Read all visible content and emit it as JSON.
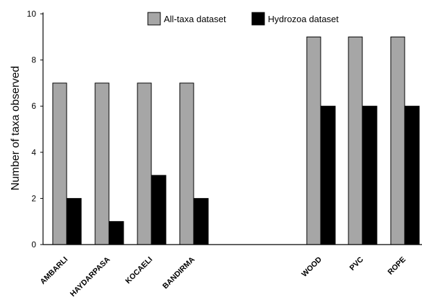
{
  "chart_data": {
    "type": "bar",
    "title": "",
    "xlabel": "",
    "ylabel": "Number of taxa observed",
    "ylim": [
      0,
      10
    ],
    "yticks": [
      0,
      2,
      4,
      6,
      8,
      10
    ],
    "categories": [
      "AMBARLI",
      "HAYDARPASA",
      "KOCAELI",
      "BANDIRMA",
      "WOOD",
      "PVC",
      "ROPE"
    ],
    "series": [
      {
        "name": "All-taxa dataset",
        "color": "#a6a6a6",
        "values": [
          7,
          7,
          7,
          7,
          9,
          9,
          9
        ]
      },
      {
        "name": "Hydrozoa dataset",
        "color": "#000000",
        "values": [
          2,
          1,
          3,
          2,
          6,
          6,
          6
        ]
      }
    ],
    "legend_position": "top",
    "grid": false
  }
}
